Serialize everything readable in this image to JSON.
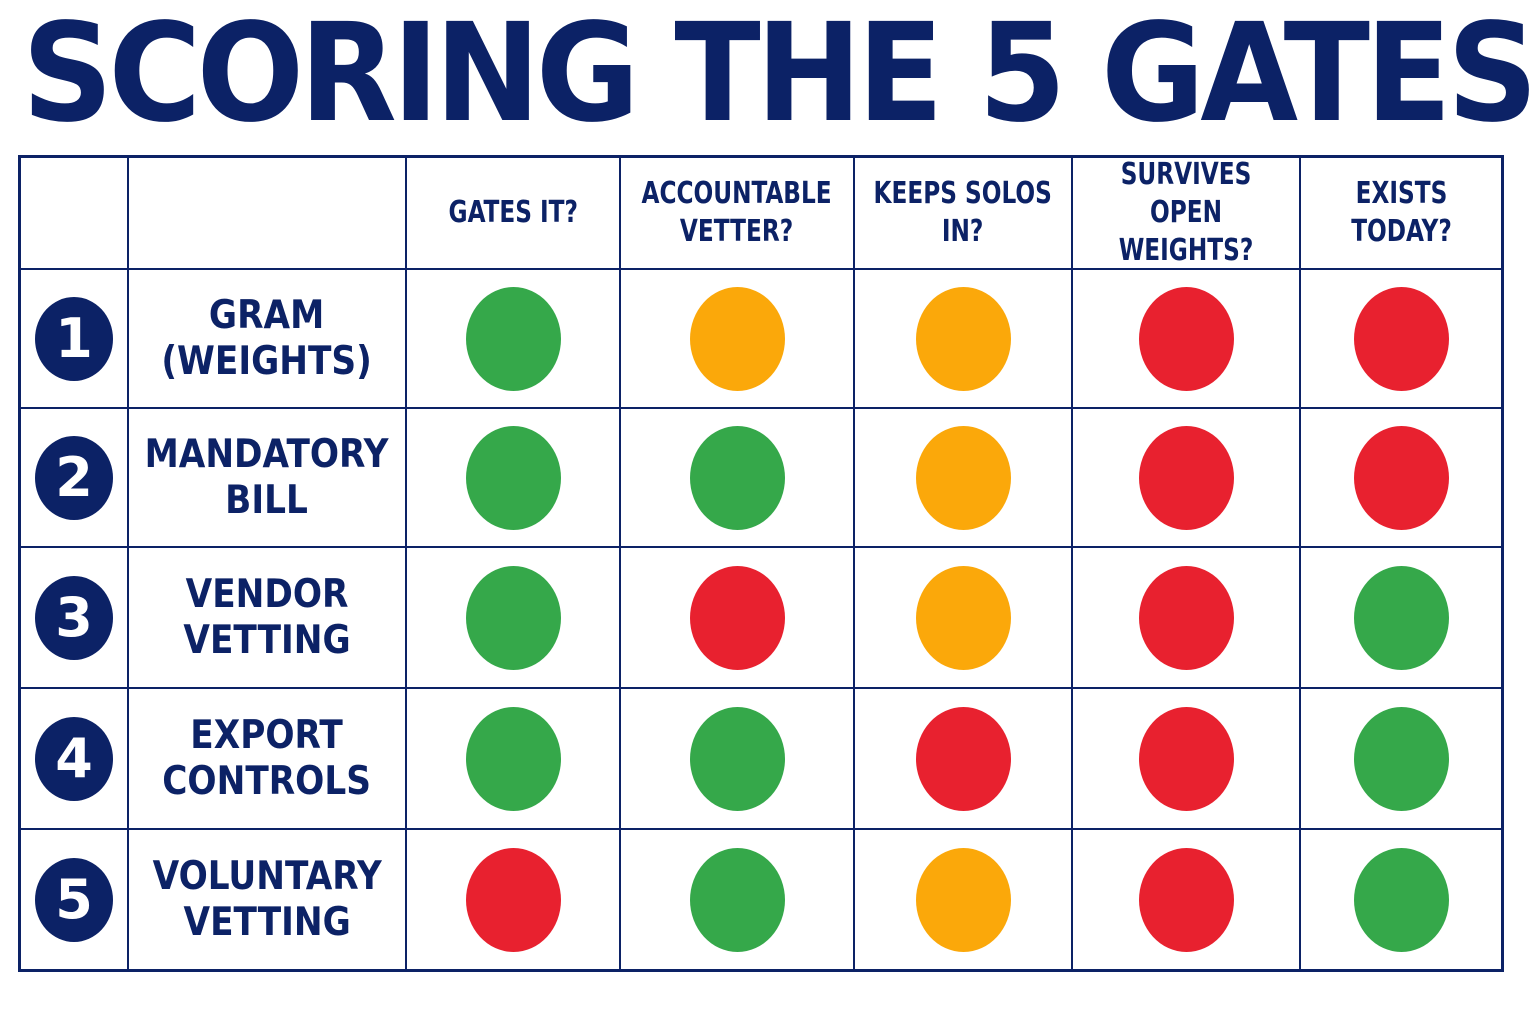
{
  "title": "SCORING THE 5 GATES",
  "columns": [
    "GATES IT?",
    "ACCOUNTABLE\nVETTER?",
    "KEEPS SOLOS\nIN?",
    "SURVIVES OPEN\nWEIGHTS?",
    "EXISTS\nTODAY?"
  ],
  "rows": [
    {
      "number": "1",
      "label": "GRAM\n(WEIGHTS)",
      "scores": [
        "green",
        "amber",
        "amber",
        "red",
        "red"
      ]
    },
    {
      "number": "2",
      "label": "MANDATORY\nBILL",
      "scores": [
        "green",
        "green",
        "amber",
        "red",
        "red"
      ]
    },
    {
      "number": "3",
      "label": "VENDOR\nVETTING",
      "scores": [
        "green",
        "red",
        "amber",
        "red",
        "green"
      ]
    },
    {
      "number": "4",
      "label": "EXPORT\nCONTROLS",
      "scores": [
        "green",
        "green",
        "red",
        "red",
        "green"
      ]
    },
    {
      "number": "5",
      "label": "VOLUNTARY\nVETTING",
      "scores": [
        "red",
        "green",
        "amber",
        "red",
        "green"
      ]
    }
  ],
  "colors": {
    "navy": "#0c2266",
    "green": "#35a84a",
    "amber": "#fba80a",
    "red": "#e8212f"
  }
}
